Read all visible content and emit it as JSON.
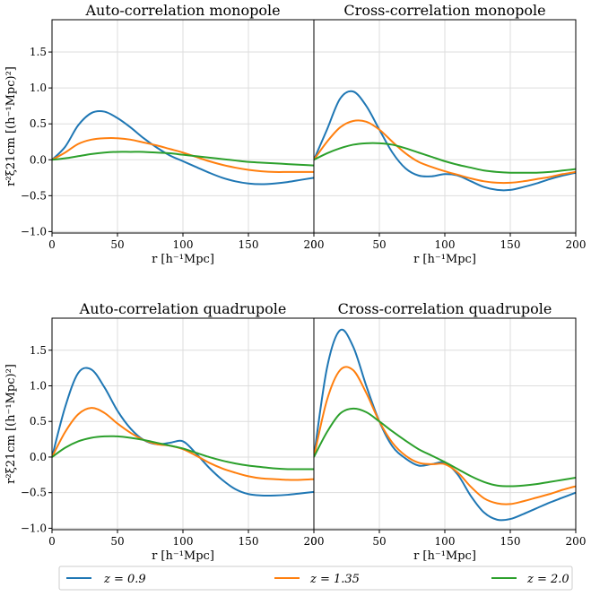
{
  "figure": {
    "legend": {
      "placement": "bottom",
      "entries": [
        {
          "label": "z = 0.9",
          "color": "#1f77b4"
        },
        {
          "label": "z = 1.35",
          "color": "#ff7f0e"
        },
        {
          "label": "z = 2.0",
          "color": "#2ca02c"
        }
      ]
    }
  },
  "chart_data": [
    {
      "type": "line",
      "title": "Auto-correlation monopole",
      "xlabel": "r [h⁻¹Mpc]",
      "ylabel": "r²ξ21cm [(h⁻¹Mpc)²]",
      "xlim": [
        0,
        200
      ],
      "ylim": [
        -1.02,
        1.95
      ],
      "xticks": [
        "0",
        "50",
        "100",
        "150",
        "200"
      ],
      "yticks": [
        "−1.0",
        "−0.5",
        "0.0",
        "0.5",
        "1.0",
        "1.5"
      ],
      "grid": true,
      "x": [
        0,
        10,
        20,
        30,
        40,
        50,
        60,
        70,
        80,
        90,
        100,
        110,
        120,
        130,
        140,
        150,
        160,
        170,
        180,
        190,
        200
      ],
      "series": [
        {
          "name": "z = 0.9",
          "color": "#1f77b4",
          "values": [
            0,
            0.18,
            0.48,
            0.65,
            0.67,
            0.58,
            0.45,
            0.3,
            0.17,
            0.06,
            -0.02,
            -0.1,
            -0.18,
            -0.25,
            -0.3,
            -0.33,
            -0.34,
            -0.33,
            -0.31,
            -0.28,
            -0.25
          ]
        },
        {
          "name": "z = 1.35",
          "color": "#ff7f0e",
          "values": [
            0,
            0.1,
            0.22,
            0.28,
            0.3,
            0.3,
            0.28,
            0.24,
            0.2,
            0.15,
            0.1,
            0.04,
            -0.02,
            -0.07,
            -0.11,
            -0.14,
            -0.16,
            -0.17,
            -0.17,
            -0.17,
            -0.17
          ]
        },
        {
          "name": "z = 2.0",
          "color": "#2ca02c",
          "values": [
            0,
            0.02,
            0.05,
            0.08,
            0.1,
            0.11,
            0.11,
            0.11,
            0.1,
            0.09,
            0.07,
            0.05,
            0.03,
            0.01,
            -0.01,
            -0.03,
            -0.04,
            -0.05,
            -0.06,
            -0.07,
            -0.08
          ]
        }
      ]
    },
    {
      "type": "line",
      "title": "Cross-correlation monopole",
      "xlabel": "r [h⁻¹Mpc]",
      "ylabel": "",
      "xlim": [
        0,
        200
      ],
      "ylim": [
        -1.02,
        1.95
      ],
      "xticks": [
        "0",
        "50",
        "100",
        "150",
        "200"
      ],
      "yticks": [],
      "grid": true,
      "x": [
        0,
        10,
        20,
        30,
        40,
        50,
        60,
        70,
        80,
        90,
        100,
        110,
        120,
        130,
        140,
        150,
        160,
        170,
        180,
        190,
        200
      ],
      "series": [
        {
          "name": "z = 0.9",
          "color": "#1f77b4",
          "values": [
            0,
            0.42,
            0.85,
            0.95,
            0.75,
            0.42,
            0.1,
            -0.12,
            -0.22,
            -0.23,
            -0.2,
            -0.22,
            -0.3,
            -0.38,
            -0.42,
            -0.42,
            -0.38,
            -0.33,
            -0.27,
            -0.22,
            -0.18
          ]
        },
        {
          "name": "z = 1.35",
          "color": "#ff7f0e",
          "values": [
            0,
            0.25,
            0.45,
            0.54,
            0.53,
            0.42,
            0.25,
            0.09,
            -0.03,
            -0.1,
            -0.16,
            -0.21,
            -0.26,
            -0.3,
            -0.32,
            -0.32,
            -0.3,
            -0.27,
            -0.24,
            -0.2,
            -0.17
          ]
        },
        {
          "name": "z = 2.0",
          "color": "#2ca02c",
          "values": [
            0,
            0.09,
            0.16,
            0.21,
            0.23,
            0.23,
            0.21,
            0.16,
            0.1,
            0.04,
            -0.02,
            -0.07,
            -0.11,
            -0.15,
            -0.17,
            -0.18,
            -0.18,
            -0.18,
            -0.17,
            -0.15,
            -0.13
          ]
        }
      ]
    },
    {
      "type": "line",
      "title": "Auto-correlation quadrupole",
      "xlabel": "r [h⁻¹Mpc]",
      "ylabel": "r²ξ21cm [(h⁻¹Mpc)²]",
      "xlim": [
        0,
        200
      ],
      "ylim": [
        -1.02,
        1.95
      ],
      "xticks": [
        "0",
        "50",
        "100",
        "150",
        "200"
      ],
      "yticks": [
        "−1.0",
        "−0.5",
        "0.0",
        "0.5",
        "1.0",
        "1.5"
      ],
      "grid": true,
      "x": [
        0,
        10,
        20,
        30,
        40,
        50,
        60,
        70,
        80,
        90,
        100,
        110,
        120,
        130,
        140,
        150,
        160,
        170,
        180,
        190,
        200
      ],
      "series": [
        {
          "name": "z = 0.9",
          "color": "#1f77b4",
          "values": [
            0,
            0.7,
            1.18,
            1.23,
            0.98,
            0.65,
            0.4,
            0.24,
            0.18,
            0.2,
            0.22,
            0.05,
            -0.15,
            -0.32,
            -0.45,
            -0.52,
            -0.54,
            -0.54,
            -0.53,
            -0.51,
            -0.49
          ]
        },
        {
          "name": "z = 1.35",
          "color": "#ff7f0e",
          "values": [
            0,
            0.35,
            0.6,
            0.69,
            0.62,
            0.47,
            0.34,
            0.24,
            0.18,
            0.16,
            0.11,
            0.02,
            -0.08,
            -0.16,
            -0.22,
            -0.27,
            -0.3,
            -0.31,
            -0.32,
            -0.32,
            -0.31
          ]
        },
        {
          "name": "z = 2.0",
          "color": "#2ca02c",
          "values": [
            0,
            0.13,
            0.22,
            0.27,
            0.29,
            0.29,
            0.27,
            0.24,
            0.2,
            0.16,
            0.12,
            0.06,
            0.0,
            -0.05,
            -0.09,
            -0.12,
            -0.14,
            -0.16,
            -0.17,
            -0.17,
            -0.17
          ]
        }
      ]
    },
    {
      "type": "line",
      "title": "Cross-correlation quadrupole",
      "xlabel": "r [h⁻¹Mpc]",
      "ylabel": "",
      "xlim": [
        0,
        200
      ],
      "ylim": [
        -1.02,
        1.95
      ],
      "xticks": [
        "0",
        "50",
        "100",
        "150",
        "200"
      ],
      "yticks": [],
      "grid": true,
      "x": [
        0,
        10,
        20,
        30,
        40,
        50,
        60,
        70,
        80,
        90,
        100,
        110,
        120,
        130,
        140,
        150,
        160,
        170,
        180,
        190,
        200
      ],
      "series": [
        {
          "name": "z = 0.9",
          "color": "#1f77b4",
          "values": [
            0,
            1.25,
            1.78,
            1.55,
            1.0,
            0.5,
            0.15,
            -0.02,
            -0.12,
            -0.1,
            -0.08,
            -0.25,
            -0.55,
            -0.78,
            -0.88,
            -0.87,
            -0.8,
            -0.72,
            -0.64,
            -0.57,
            -0.5
          ]
        },
        {
          "name": "z = 1.35",
          "color": "#ff7f0e",
          "values": [
            0,
            0.8,
            1.22,
            1.22,
            0.9,
            0.5,
            0.2,
            0.02,
            -0.08,
            -0.1,
            -0.1,
            -0.22,
            -0.42,
            -0.58,
            -0.65,
            -0.66,
            -0.62,
            -0.57,
            -0.52,
            -0.46,
            -0.41
          ]
        },
        {
          "name": "z = 2.0",
          "color": "#2ca02c",
          "values": [
            0,
            0.35,
            0.61,
            0.68,
            0.63,
            0.5,
            0.36,
            0.23,
            0.11,
            0.02,
            -0.07,
            -0.17,
            -0.27,
            -0.35,
            -0.4,
            -0.41,
            -0.4,
            -0.38,
            -0.35,
            -0.32,
            -0.29
          ]
        }
      ]
    }
  ]
}
